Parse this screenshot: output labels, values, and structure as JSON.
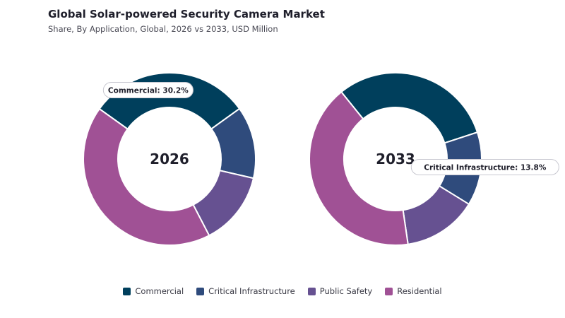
{
  "title": "Global Solar-powered Security Camera Market",
  "subtitle": "Share, By Application, Global, 2026 vs 2033, USD Million",
  "colors": {
    "Commercial": "#003f5c",
    "Critical Infrastructure": "#2f4b7c",
    "Public Safety": "#665191",
    "Residential": "#a05195"
  },
  "chart_data": {
    "type": "pie",
    "categories": [
      "Commercial",
      "Critical Infrastructure",
      "Public Safety",
      "Residential"
    ],
    "series": [
      {
        "name": "2026",
        "values": [
          30.2,
          13.5,
          13.8,
          42.5
        ]
      },
      {
        "name": "2033",
        "values": [
          30.8,
          13.8,
          13.9,
          41.5
        ]
      }
    ],
    "callouts": [
      {
        "series": "2026",
        "category": "Commercial",
        "text": "Commercial: 30.2%"
      },
      {
        "series": "2033",
        "category": "Critical Infrastructure",
        "text": "Critical Infrastructure: 13.8%"
      }
    ],
    "legend": "bottom"
  }
}
